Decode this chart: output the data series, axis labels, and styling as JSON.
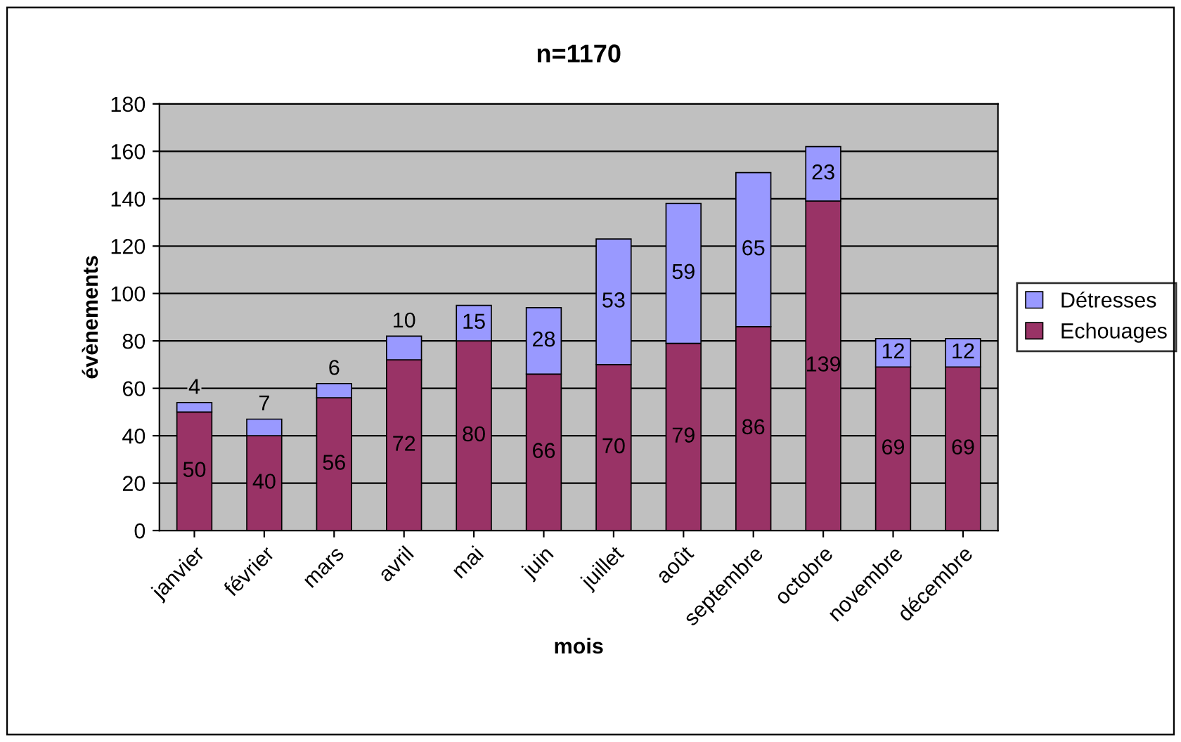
{
  "chart_data": {
    "type": "bar",
    "title": "n=1170",
    "xlabel": "mois",
    "ylabel": "évènements",
    "categories": [
      "janvier",
      "février",
      "mars",
      "avril",
      "mai",
      "juin",
      "juillet",
      "août",
      "septembre",
      "octobre",
      "novembre",
      "décembre"
    ],
    "stacked": true,
    "data_labels": true,
    "grid": "y",
    "legend": "right",
    "ylim": [
      0,
      180
    ],
    "yticks": [
      0,
      20,
      40,
      60,
      80,
      100,
      120,
      140,
      160,
      180
    ],
    "series": [
      {
        "name": "Echouages",
        "color": "#993366",
        "values": [
          50,
          40,
          56,
          72,
          80,
          66,
          70,
          79,
          86,
          139,
          69,
          69
        ]
      },
      {
        "name": "Détresses",
        "color": "#9999ff",
        "values": [
          4,
          7,
          6,
          10,
          15,
          28,
          53,
          59,
          65,
          23,
          12,
          12
        ]
      }
    ]
  }
}
